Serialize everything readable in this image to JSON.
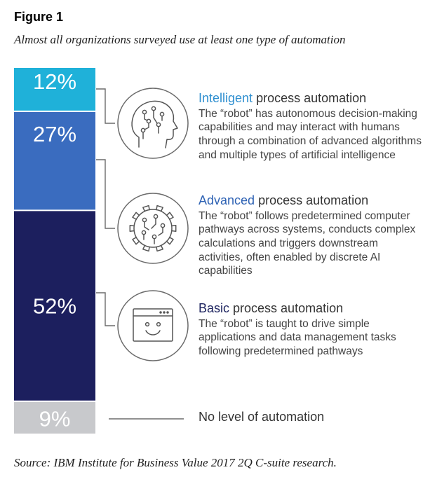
{
  "figure_label": "Figure 1",
  "subtitle": "Almost all organizations surveyed use at least one type of automation",
  "source": "Source: IBM Institute for Business Value 2017 2Q C-suite research.",
  "chart_data": {
    "type": "bar",
    "orientation": "stacked-vertical",
    "title": "Almost all organizations surveyed use at least one type of automation",
    "categories": [
      "Intelligent process automation",
      "Advanced process automation",
      "Basic process automation",
      "No level of automation"
    ],
    "values": [
      12,
      27,
      52,
      9
    ],
    "labels": [
      "12%",
      "27%",
      "52%",
      "9%"
    ],
    "colors": [
      "#1fb1d9",
      "#3a6cbf",
      "#1c1f5e",
      "#c8c9cc"
    ],
    "ylim": [
      0,
      100
    ]
  },
  "categories_info": [
    {
      "keyword": "Intelligent",
      "rest": " process automation",
      "desc": "The “robot” has autonomous decision-making capabilities and may interact with humans through a combination of advanced algorithms and multiple types of artificial intelligence",
      "icon": "brain-head-icon"
    },
    {
      "keyword": "Advanced",
      "rest": " process automation",
      "desc": "The “robot” follows predetermined computer pathways across systems, conducts complex calculations and triggers downstream activities, often enabled by discrete AI capabilities",
      "icon": "gear-circuit-icon"
    },
    {
      "keyword": "Basic",
      "rest": " process automation",
      "desc": "The “robot” is taught to drive simple applications and data management tasks following predetermined pathways",
      "icon": "smiley-window-icon"
    }
  ],
  "none_label": "No level of automation"
}
